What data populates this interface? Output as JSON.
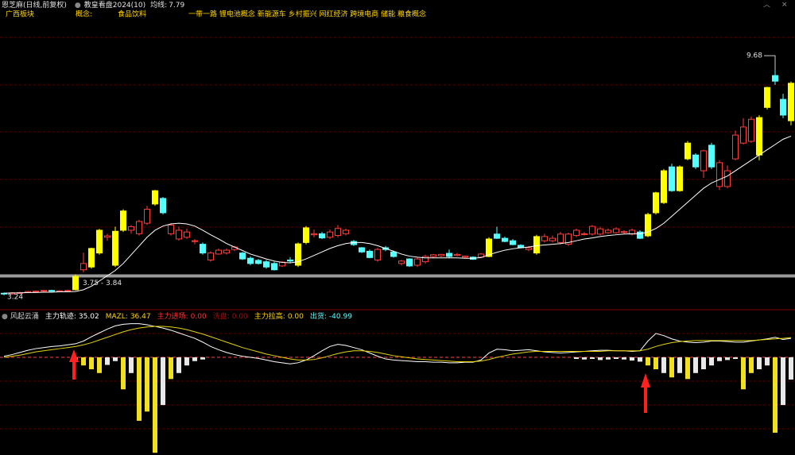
{
  "header": {
    "stock": "恩芝麻(日线,前复权)",
    "indicator": "教皇看盘2024(10)",
    "ma_label": "均线:",
    "ma_value": 7.79,
    "region": "广西板块",
    "concept_label": "概念:",
    "industry": "食品饮料",
    "concepts": "一带一路 锂电池概念 新能源车 乡村振兴 网红经济 跨境电商 储能 粮食概念"
  },
  "chart_data": [
    {
      "type": "candlestick",
      "ylim": [
        2.83,
        11.18
      ],
      "up_color": "#ff3b3b",
      "down_color": "#54ffff",
      "signal_color": "#ffff00",
      "signal": [
        9,
        11,
        12,
        14,
        15,
        19,
        37,
        38,
        61,
        67,
        81,
        82,
        83,
        85,
        86,
        95,
        96,
        99
      ],
      "ohlc": [
        [
          3.3,
          3.32,
          3.24,
          3.28
        ],
        [
          3.28,
          3.33,
          3.26,
          3.31
        ],
        [
          3.31,
          3.34,
          3.29,
          3.32
        ],
        [
          3.32,
          3.36,
          3.3,
          3.35
        ],
        [
          3.35,
          3.38,
          3.33,
          3.36
        ],
        [
          3.36,
          3.4,
          3.34,
          3.38
        ],
        [
          3.38,
          3.4,
          3.35,
          3.36
        ],
        [
          3.36,
          3.39,
          3.34,
          3.37
        ],
        [
          3.37,
          3.4,
          3.35,
          3.38
        ],
        [
          3.4,
          3.84,
          3.38,
          3.78
        ],
        [
          3.97,
          4.46,
          3.9,
          4.15
        ],
        [
          4.05,
          4.6,
          4.0,
          4.58
        ],
        [
          4.45,
          5.14,
          4.4,
          5.1
        ],
        [
          4.9,
          5.0,
          4.8,
          4.94
        ],
        [
          4.1,
          5.2,
          4.05,
          5.07
        ],
        [
          5.1,
          5.7,
          5.05,
          5.65
        ],
        [
          5.1,
          5.25,
          5.0,
          5.2
        ],
        [
          5.0,
          5.4,
          4.95,
          5.35
        ],
        [
          5.3,
          5.8,
          5.25,
          5.7
        ],
        [
          5.85,
          6.25,
          5.8,
          6.23
        ],
        [
          6.01,
          6.05,
          5.55,
          5.6
        ],
        [
          5.0,
          5.3,
          4.95,
          5.25
        ],
        [
          4.85,
          5.2,
          4.8,
          5.1
        ],
        [
          4.9,
          5.15,
          4.85,
          5.05
        ],
        [
          4.78,
          4.85,
          4.7,
          4.8
        ],
        [
          4.7,
          4.75,
          4.4,
          4.45
        ],
        [
          4.25,
          4.5,
          4.2,
          4.45
        ],
        [
          4.42,
          4.58,
          4.4,
          4.53
        ],
        [
          4.45,
          4.58,
          4.4,
          4.53
        ],
        [
          4.55,
          4.65,
          4.5,
          4.62
        ],
        [
          4.45,
          4.48,
          4.25,
          4.28
        ],
        [
          4.3,
          4.35,
          4.1,
          4.15
        ],
        [
          4.24,
          4.28,
          4.12,
          4.15
        ],
        [
          4.2,
          4.25,
          4.0,
          4.05
        ],
        [
          4.15,
          4.2,
          3.95,
          3.97
        ],
        [
          4.08,
          4.22,
          4.05,
          4.19
        ],
        [
          4.25,
          4.33,
          4.18,
          4.22
        ],
        [
          4.1,
          4.75,
          4.05,
          4.71
        ],
        [
          4.75,
          5.22,
          4.7,
          5.17
        ],
        [
          4.97,
          5.12,
          4.9,
          5.0
        ],
        [
          5.0,
          5.05,
          4.85,
          4.88
        ],
        [
          4.9,
          5.12,
          4.85,
          5.05
        ],
        [
          4.95,
          5.25,
          4.9,
          5.15
        ],
        [
          5.0,
          5.15,
          4.95,
          5.1
        ],
        [
          4.78,
          4.82,
          4.65,
          4.69
        ],
        [
          4.6,
          4.62,
          4.45,
          4.48
        ],
        [
          4.5,
          4.55,
          4.3,
          4.32
        ],
        [
          4.25,
          4.6,
          4.2,
          4.55
        ],
        [
          4.6,
          4.65,
          4.5,
          4.55
        ],
        [
          4.48,
          4.52,
          4.32,
          4.35
        ],
        [
          4.15,
          4.25,
          4.1,
          4.22
        ],
        [
          4.28,
          4.3,
          4.05,
          4.08
        ],
        [
          4.1,
          4.32,
          4.05,
          4.28
        ],
        [
          4.2,
          4.4,
          4.15,
          4.35
        ],
        [
          4.35,
          4.42,
          4.3,
          4.4
        ],
        [
          4.37,
          4.42,
          4.33,
          4.41
        ],
        [
          4.44,
          4.55,
          4.3,
          4.35
        ],
        [
          4.38,
          4.45,
          4.35,
          4.41
        ],
        [
          4.33,
          4.38,
          4.3,
          4.36
        ],
        [
          4.33,
          4.35,
          4.25,
          4.27
        ],
        [
          4.33,
          4.45,
          4.3,
          4.42
        ],
        [
          4.35,
          4.9,
          4.33,
          4.85
        ],
        [
          4.99,
          5.2,
          4.85,
          4.87
        ],
        [
          4.87,
          4.92,
          4.76,
          4.78
        ],
        [
          4.8,
          4.85,
          4.67,
          4.69
        ],
        [
          4.67,
          4.7,
          4.58,
          4.6
        ],
        [
          4.55,
          4.65,
          4.5,
          4.6
        ],
        [
          4.45,
          4.97,
          4.4,
          4.92
        ],
        [
          4.8,
          5.0,
          4.75,
          4.92
        ],
        [
          4.8,
          4.95,
          4.75,
          4.87
        ],
        [
          4.75,
          5.05,
          4.7,
          4.99
        ],
        [
          4.7,
          5.03,
          4.65,
          4.99
        ],
        [
          4.95,
          5.15,
          4.9,
          5.1
        ],
        [
          4.98,
          5.05,
          4.95,
          5.0
        ],
        [
          4.99,
          5.25,
          4.95,
          5.21
        ],
        [
          4.99,
          5.2,
          4.95,
          5.14
        ],
        [
          5.03,
          5.15,
          5.0,
          5.1
        ],
        [
          5.03,
          5.18,
          5.0,
          5.14
        ],
        [
          5.04,
          5.1,
          5.0,
          5.06
        ],
        [
          4.99,
          5.15,
          4.95,
          5.1
        ],
        [
          5.05,
          5.1,
          4.85,
          4.87
        ],
        [
          4.94,
          5.6,
          4.9,
          5.55
        ],
        [
          5.6,
          6.2,
          5.55,
          6.17
        ],
        [
          5.89,
          6.85,
          5.85,
          6.8
        ],
        [
          6.91,
          7.0,
          6.2,
          6.23
        ],
        [
          6.23,
          6.95,
          6.2,
          6.91
        ],
        [
          7.14,
          7.65,
          7.1,
          7.59
        ],
        [
          7.25,
          7.3,
          6.85,
          6.91
        ],
        [
          6.8,
          7.4,
          6.6,
          7.37
        ],
        [
          7.53,
          7.6,
          6.85,
          6.91
        ],
        [
          6.35,
          7.1,
          6.25,
          7.03
        ],
        [
          6.35,
          6.95,
          6.3,
          6.8
        ],
        [
          7.14,
          7.95,
          7.1,
          7.82
        ],
        [
          7.59,
          8.3,
          7.55,
          8.05
        ],
        [
          7.64,
          8.35,
          7.6,
          8.27
        ],
        [
          7.25,
          8.39,
          7.1,
          8.32
        ],
        [
          8.61,
          9.2,
          8.55,
          9.18
        ],
        [
          9.52,
          9.68,
          9.25,
          9.36
        ],
        [
          8.84,
          9.0,
          8.3,
          8.39
        ],
        [
          8.23,
          9.35,
          8.1,
          9.3
        ]
      ],
      "ma": {
        "color": "#ffffff",
        "values": [
          3.3,
          3.31,
          3.31,
          3.32,
          3.32,
          3.33,
          3.33,
          3.34,
          3.34,
          3.35,
          3.4,
          3.5,
          3.65,
          3.8,
          3.95,
          4.15,
          4.4,
          4.65,
          4.9,
          5.1,
          5.22,
          5.28,
          5.3,
          5.28,
          5.22,
          5.1,
          4.97,
          4.85,
          4.72,
          4.62,
          4.52,
          4.42,
          4.35,
          4.28,
          4.22,
          4.18,
          4.17,
          4.2,
          4.28,
          4.38,
          4.48,
          4.58,
          4.66,
          4.72,
          4.75,
          4.75,
          4.72,
          4.66,
          4.58,
          4.5,
          4.42,
          4.36,
          4.33,
          4.31,
          4.31,
          4.31,
          4.31,
          4.31,
          4.3,
          4.3,
          4.32,
          4.4,
          4.47,
          4.53,
          4.57,
          4.6,
          4.62,
          4.66,
          4.68,
          4.7,
          4.72,
          4.75,
          4.8,
          4.85,
          4.88,
          4.92,
          4.95,
          4.97,
          4.99,
          5.0,
          5.0,
          5.05,
          5.15,
          5.3,
          5.5,
          5.7,
          5.9,
          6.1,
          6.3,
          6.45,
          6.55,
          6.65,
          6.8,
          6.95,
          7.1,
          7.25,
          7.4,
          7.55,
          7.7,
          7.79
        ]
      },
      "high_label": {
        "value": 9.68,
        "index": 97
      },
      "low_label": {
        "value": 3.24,
        "index": 0
      },
      "band": {
        "low": 3.75,
        "high": 3.84,
        "label": "3.75 - 3.84",
        "color": "#9a9a9a"
      }
    },
    {
      "type": "indicator",
      "title": "风起云涌",
      "ylim": [
        -180.1,
        84.9
      ],
      "legend": [
        {
          "label": "主力轨迹:",
          "value": 35.02,
          "color": "#ffffff"
        },
        {
          "label": "MAZL:",
          "value": 36.47,
          "color": "#ffd400"
        },
        {
          "label": "主力进场:",
          "value_label": "0.00",
          "value": 0,
          "color": "#ff3030"
        },
        {
          "label": "洗盘:",
          "value_label": "0.00",
          "value": 0,
          "color": "#a01010"
        },
        {
          "label": "主力拉高:",
          "value_label": "0.00",
          "value": 0,
          "color": "#ffd400"
        },
        {
          "label": "出货:",
          "value": -40.99,
          "color": "#54ffff"
        }
      ],
      "series": [
        {
          "name": "主力轨迹",
          "color": "#ffffff",
          "values": [
            2,
            5,
            9,
            13,
            16,
            18,
            20,
            21,
            23,
            25,
            30,
            38,
            45,
            52,
            58,
            61,
            62,
            62,
            60,
            57,
            54,
            50,
            45,
            40,
            35,
            28,
            20,
            14,
            9,
            5,
            2,
            0,
            -2,
            -5,
            -8,
            -10,
            -12,
            -10,
            -5,
            3,
            12,
            20,
            24,
            22,
            18,
            14,
            8,
            2,
            -3,
            -5,
            -6,
            -7,
            -8,
            -8,
            -9,
            -9,
            -10,
            -10,
            -9,
            -9,
            -5,
            8,
            15,
            14,
            12,
            13,
            14,
            12,
            10,
            9,
            8,
            9,
            10,
            11,
            12,
            13,
            13,
            12,
            12,
            11,
            12,
            30,
            44,
            40,
            34,
            30,
            28,
            27,
            28,
            30,
            30,
            29,
            28,
            28,
            30,
            32,
            34,
            37,
            33,
            35.02
          ]
        },
        {
          "name": "MAZL",
          "color": "#e6d200",
          "values": [
            0,
            2,
            4,
            7,
            10,
            12,
            14,
            16,
            18,
            20,
            23,
            27,
            32,
            37,
            42,
            47,
            51,
            54,
            56,
            57,
            57,
            56,
            54,
            51,
            47,
            43,
            38,
            33,
            28,
            23,
            18,
            14,
            10,
            6,
            3,
            0,
            -3,
            -5,
            -5,
            -4,
            -1,
            3,
            7,
            10,
            12,
            12,
            11,
            9,
            6,
            3,
            1,
            -1,
            -3,
            -4,
            -5,
            -6,
            -7,
            -8,
            -8,
            -8,
            -7,
            -4,
            0,
            3,
            6,
            8,
            10,
            11,
            11,
            11,
            11,
            11,
            11,
            11,
            11,
            11,
            12,
            12,
            12,
            12,
            12,
            15,
            20,
            24,
            27,
            29,
            30,
            31,
            31,
            31,
            31,
            31,
            31,
            31,
            31,
            32,
            33,
            34,
            35,
            36.47
          ]
        }
      ],
      "bars": {
        "name": "出货",
        "color": "#e8e8e8",
        "signal_color": "#f0e020",
        "signal": [
          10,
          11,
          12,
          15,
          17,
          18,
          19,
          21,
          81,
          82,
          84,
          86,
          93,
          94,
          97
        ],
        "values": [
          null,
          null,
          null,
          null,
          null,
          null,
          null,
          null,
          null,
          -5,
          -15,
          -22,
          -29,
          -14,
          -7,
          -59,
          -29,
          -117,
          -100,
          -176,
          -88,
          -40,
          -29,
          -15,
          -7,
          -4,
          null,
          null,
          null,
          null,
          null,
          null,
          null,
          null,
          null,
          null,
          null,
          null,
          null,
          null,
          null,
          null,
          null,
          null,
          null,
          null,
          null,
          null,
          null,
          null,
          null,
          null,
          null,
          null,
          null,
          null,
          null,
          null,
          null,
          null,
          null,
          null,
          null,
          null,
          null,
          null,
          null,
          null,
          null,
          null,
          null,
          null,
          -3,
          -4,
          -3,
          -5,
          -4,
          -3,
          -4,
          -6,
          -8,
          -15,
          -22,
          -29,
          -37,
          -29,
          -40,
          -29,
          -22,
          -15,
          -7,
          -5,
          -3,
          -59,
          -29,
          -22,
          -15,
          -139,
          -88,
          -40.99
        ]
      }
    }
  ]
}
